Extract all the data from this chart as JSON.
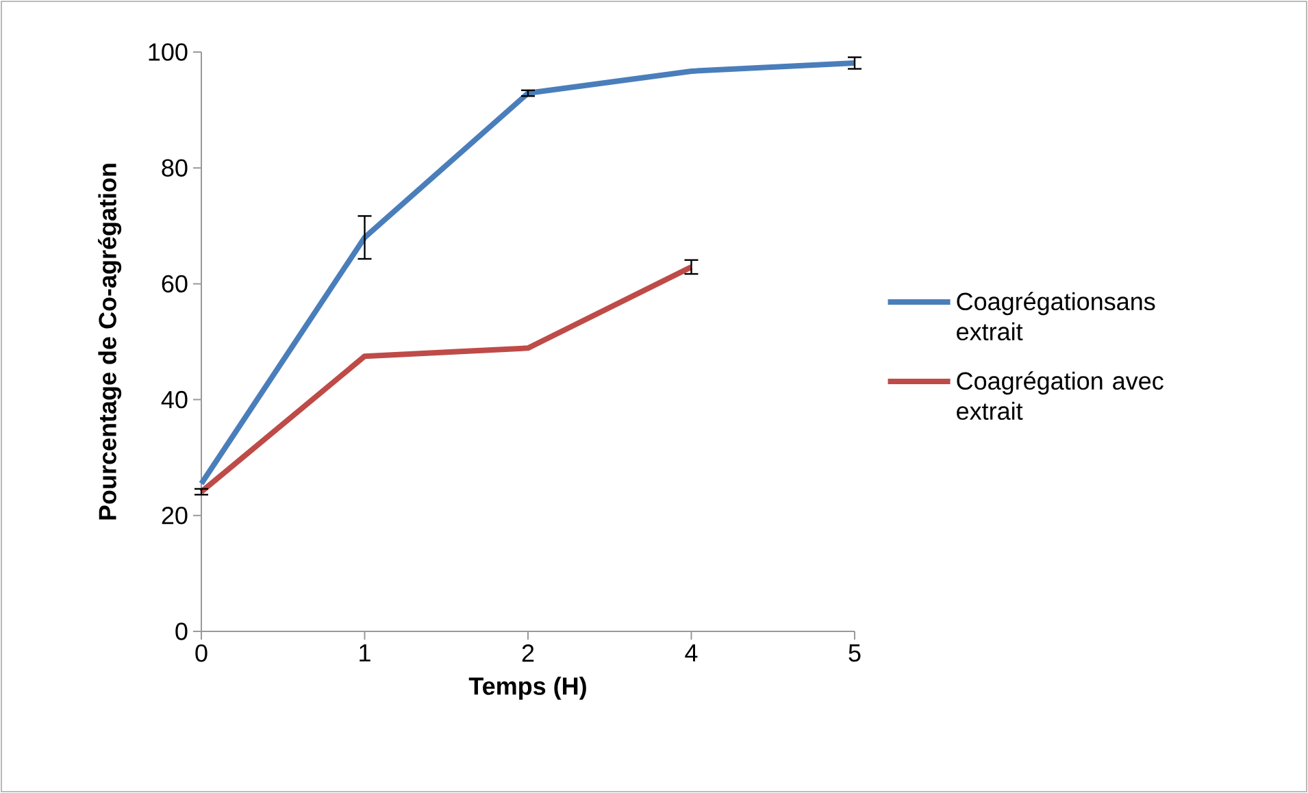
{
  "chart_data": {
    "type": "line",
    "xlabel": "Temps (H)",
    "ylabel": "Pourcentage de Co-agrégation",
    "categories": [
      "0",
      "1",
      "2",
      "4",
      "5"
    ],
    "series": [
      {
        "name": "Coagrégationsans extrait",
        "color": "#4a7ebb",
        "values": [
          25.5,
          68,
          92.9,
          96.7,
          98.1
        ],
        "errors": [
          null,
          3.7,
          0.5,
          null,
          1
        ]
      },
      {
        "name": "Coagrégation avec extrait",
        "color": "#be4b48",
        "values": [
          24.1,
          47.5,
          48.9,
          62.9,
          null
        ],
        "errors": [
          0.5,
          null,
          null,
          1.2,
          null
        ]
      }
    ],
    "ylim": [
      0,
      100
    ],
    "yticks": [
      0,
      20,
      40,
      60,
      80,
      100
    ],
    "grid": false,
    "legend": "right",
    "marker": "none",
    "line_style": "solid"
  }
}
